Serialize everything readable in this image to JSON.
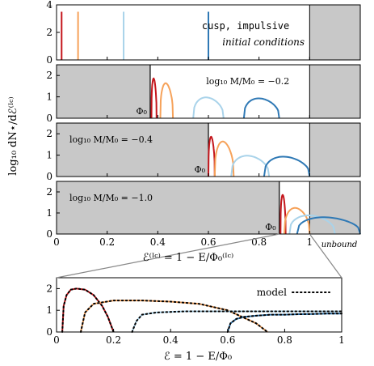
{
  "colors": {
    "red": "#c4161c",
    "orange": "#f6a25a",
    "lightblue": "#a9d3ea",
    "blue": "#2f79b5",
    "gray": "#c8c8c8"
  },
  "chart_data": {
    "type": "line",
    "ylabel": "log₁₀ dN⋆/dℰ⁽ᴵᶜ⁾",
    "xlabel_top": "ℰ⁽ᴵᶜ⁾ = 1 − E/Φ₀⁽ᴵᶜ⁾",
    "xlabel_bottom": "ℰ = 1 − E/Φ₀",
    "unbound_label": "unbound",
    "phi_label": "Φ₀",
    "panels": [
      {
        "id": "ic",
        "annotation_mono": "cusp, impulsive",
        "annotation_italic": "initial conditions",
        "ylim": [
          0,
          4
        ],
        "yticks": [
          "0",
          "2",
          "4"
        ],
        "xlim": [
          0,
          1.2
        ],
        "bound_shade": null,
        "unbound_from": 1.0,
        "spikes": [
          {
            "color": "red",
            "x": 0.02,
            "top": 3.5
          },
          {
            "color": "orange",
            "x": 0.085,
            "top": 3.5
          },
          {
            "color": "lightblue",
            "x": 0.265,
            "top": 3.5
          },
          {
            "color": "blue",
            "x": 0.6,
            "top": 3.5
          }
        ]
      },
      {
        "id": "m02",
        "label_text": "log₁₀ M/M₀ = −0.2",
        "ylim": [
          0,
          2.5
        ],
        "yticks": [
          "0",
          "1",
          "2"
        ],
        "xlim": [
          0,
          1.2
        ],
        "bound_shade": 0.37,
        "unbound_from": 1.0,
        "phi_x": 0.37,
        "curves": [
          {
            "color": "red",
            "start": 0.375,
            "end": 0.395,
            "peak": 2.1
          },
          {
            "color": "orange",
            "start": 0.41,
            "end": 0.46,
            "peak": 1.85
          },
          {
            "color": "lightblue",
            "start": 0.54,
            "end": 0.66,
            "peak": 1.1
          },
          {
            "color": "blue",
            "start": 0.74,
            "end": 0.88,
            "peak": 1.05
          }
        ]
      },
      {
        "id": "m04",
        "label_text": "log₁₀ M/M₀ = −0.4",
        "ylim": [
          0,
          2.5
        ],
        "yticks": [
          "0",
          "1",
          "2"
        ],
        "xlim": [
          0,
          1.2
        ],
        "bound_shade": 0.6,
        "unbound_from": 1.0,
        "phi_x": 0.6,
        "curves": [
          {
            "color": "red",
            "start": 0.6,
            "end": 0.625,
            "peak": 2.1
          },
          {
            "color": "orange",
            "start": 0.625,
            "end": 0.7,
            "peak": 1.85
          },
          {
            "color": "lightblue",
            "start": 0.69,
            "end": 0.84,
            "peak": 1.1
          },
          {
            "color": "blue",
            "start": 0.82,
            "end": 1.0,
            "peak": 1.05
          }
        ]
      },
      {
        "id": "m10",
        "label_text": "log₁₀ M/M₀ = −1.0",
        "ylim": [
          0,
          2.5
        ],
        "yticks": [
          "0",
          "1",
          "2"
        ],
        "xlim": [
          0,
          1.2
        ],
        "bound_shade": 0.88,
        "unbound_from": 1.0,
        "phi_x": 0.88,
        "curves": [
          {
            "color": "red",
            "start": 0.885,
            "end": 0.905,
            "peak": 2.1
          },
          {
            "color": "orange",
            "start": 0.9,
            "end": 1.0,
            "peak": 1.4
          },
          {
            "color": "lightblue",
            "start": 0.92,
            "end": 1.1,
            "peak": 1.0
          },
          {
            "color": "blue",
            "start": 0.95,
            "end": 1.2,
            "peak": 0.9
          }
        ]
      }
    ],
    "top_xticks": [
      {
        "v": 0,
        "label": "0"
      },
      {
        "v": 0.2,
        "label": "0.2"
      },
      {
        "v": 0.4,
        "label": "0.4"
      },
      {
        "v": 0.6,
        "label": "0.6"
      },
      {
        "v": 0.8,
        "label": "0.8"
      },
      {
        "v": 1.0,
        "label": "1"
      }
    ],
    "bottom": {
      "xlim": [
        0,
        1
      ],
      "ylim": [
        0,
        2.5
      ],
      "yticks": [
        "0",
        "1",
        "2"
      ],
      "xticks": [
        {
          "v": 0,
          "label": "0"
        },
        {
          "v": 0.2,
          "label": "0.2"
        },
        {
          "v": 0.4,
          "label": "0.4"
        },
        {
          "v": 0.6,
          "label": "0.6"
        },
        {
          "v": 0.8,
          "label": "0.8"
        },
        {
          "v": 1.0,
          "label": "1"
        }
      ],
      "legend": "model",
      "curves": [
        {
          "color": "red",
          "x": [
            0.02,
            0.025,
            0.035,
            0.05,
            0.07,
            0.1,
            0.13,
            0.16,
            0.18,
            0.2
          ],
          "y": [
            0,
            1.2,
            1.7,
            1.95,
            2.0,
            1.95,
            1.7,
            1.2,
            0.7,
            0
          ]
        },
        {
          "color": "orange",
          "x": [
            0.085,
            0.1,
            0.13,
            0.2,
            0.3,
            0.4,
            0.5,
            0.6,
            0.7,
            0.74
          ],
          "y": [
            0,
            0.9,
            1.3,
            1.45,
            1.45,
            1.4,
            1.3,
            1.0,
            0.4,
            0
          ]
        },
        {
          "color": "lightblue",
          "x": [
            0.265,
            0.28,
            0.3,
            0.35,
            0.45,
            0.55,
            0.65,
            0.75,
            0.85,
            0.95,
            1.0
          ],
          "y": [
            0,
            0.5,
            0.8,
            0.9,
            0.95,
            0.95,
            0.95,
            0.95,
            0.95,
            0.95,
            0.95
          ]
        },
        {
          "color": "blue",
          "x": [
            0.6,
            0.61,
            0.63,
            0.66,
            0.7,
            0.75,
            0.8,
            0.85,
            0.9,
            0.95,
            1.0
          ],
          "y": [
            0,
            0.4,
            0.6,
            0.7,
            0.75,
            0.8,
            0.8,
            0.82,
            0.83,
            0.85,
            0.85
          ]
        }
      ]
    }
  }
}
